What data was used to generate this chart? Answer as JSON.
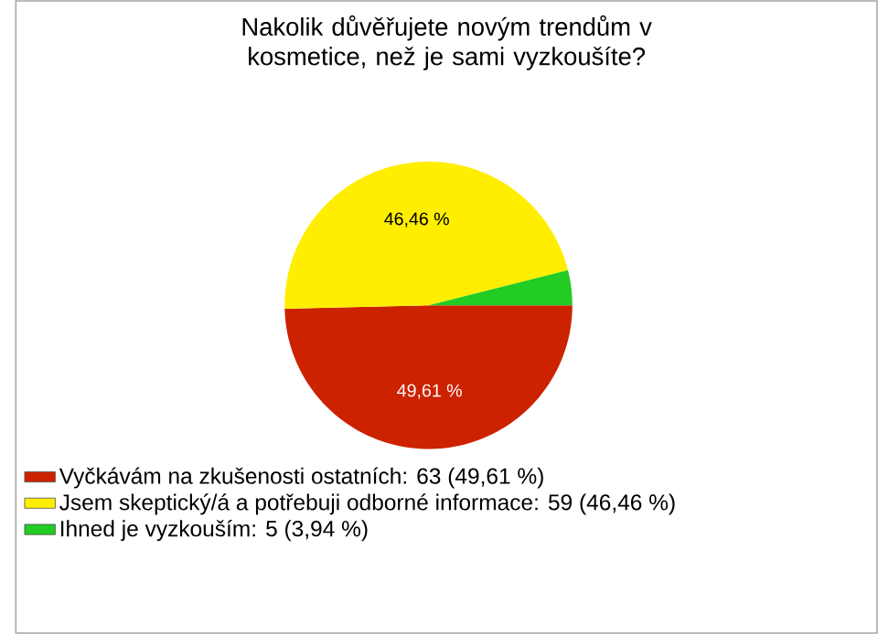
{
  "chart_data": {
    "type": "pie",
    "title": "Nakolik důvěřujete novým trendům v kosmetice, než je sami vyzkoušíte?",
    "categories": [
      "Vyčkávám na zkušenosti ostatních: 63 (49,61 %)",
      "Jsem skeptický/á a potřebuji odborné informace: 59 (46,46 %)",
      "Ihned je vyzkouším: 5 (3,94 %)"
    ],
    "values": [
      49.61,
      46.46,
      3.94
    ],
    "colors": [
      "#cc2200",
      "#ffee00",
      "#22cc22"
    ],
    "value_labels": [
      "49,61 %",
      "46,46 %",
      null
    ],
    "legend": "bottom"
  }
}
